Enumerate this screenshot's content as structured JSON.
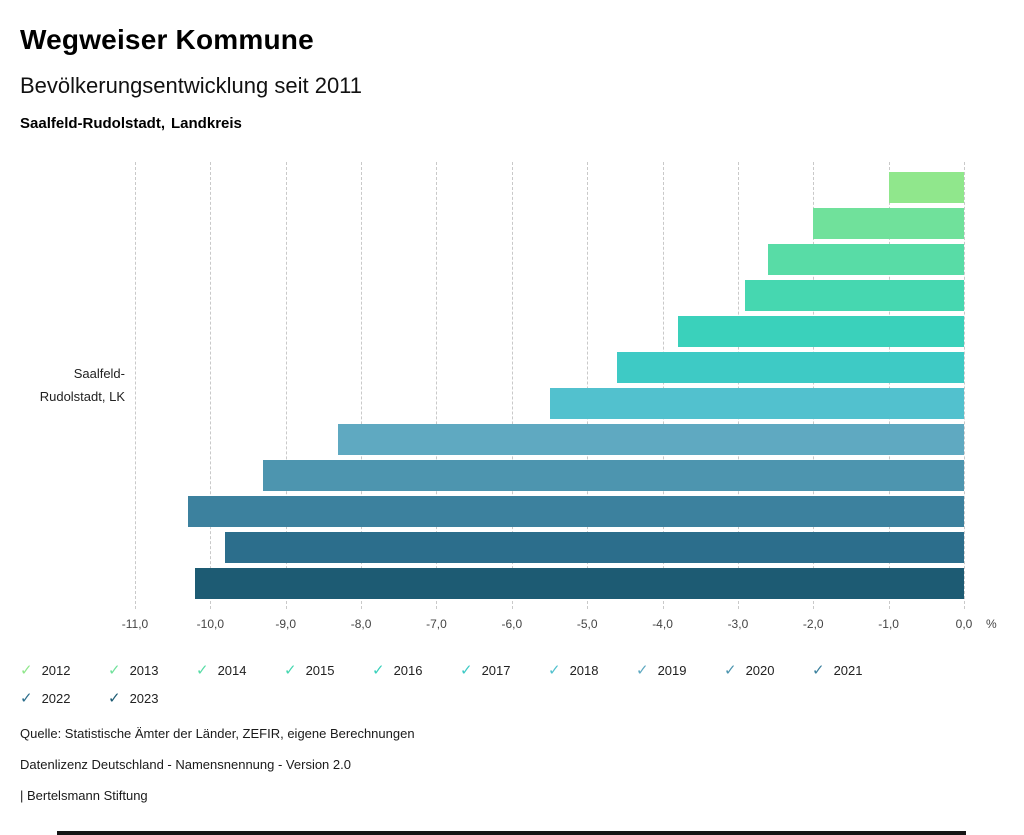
{
  "header": {
    "title": "Wegweiser Kommune",
    "subtitle": "Bevölkerungsentwicklung seit 2011",
    "region": "Saalfeld-Rudolstadt,",
    "region_type": "Landkreis"
  },
  "chart_data": {
    "type": "bar",
    "orientation": "horizontal",
    "title": "Bevölkerungsentwicklung seit 2011",
    "group_label_lines": [
      "Saalfeld-",
      "Rudolstadt, LK"
    ],
    "categories": [
      "2012",
      "2013",
      "2014",
      "2015",
      "2016",
      "2017",
      "2018",
      "2019",
      "2020",
      "2021",
      "2022",
      "2023"
    ],
    "values": [
      -1.0,
      -2.0,
      -2.6,
      -2.9,
      -3.8,
      -4.6,
      -5.5,
      -8.3,
      -9.3,
      -10.3,
      -9.8,
      -10.2
    ],
    "colors": [
      "#90e78c",
      "#70e19b",
      "#58dca6",
      "#46d7b0",
      "#3ad1bb",
      "#3ecac5",
      "#52c1ce",
      "#5fa9c1",
      "#4d95af",
      "#3c819e",
      "#2c6e8c",
      "#1d5b73"
    ],
    "xlim": [
      -11,
      0
    ],
    "x_tick_values": [
      -11,
      -10,
      -9,
      -8,
      -7,
      -6,
      -5,
      -4,
      -3,
      -2,
      -1,
      0
    ],
    "x_tick_labels": [
      "-11,0",
      "-10,0",
      "-9,0",
      "-8,0",
      "-7,0",
      "-6,0",
      "-5,0",
      "-4,0",
      "-3,0",
      "-2,0",
      "-1,0",
      "0,0"
    ],
    "unit": "%",
    "grid": "vertical-dashed",
    "legend_position": "bottom",
    "legend_icon": "check-icon"
  },
  "footer": {
    "source": "Quelle: Statistische Ämter der Länder, ZEFIR, eigene Berechnungen",
    "license": "Datenlizenz Deutschland - Namensnennung - Version 2.0",
    "publisher": "| Bertelsmann Stiftung"
  }
}
